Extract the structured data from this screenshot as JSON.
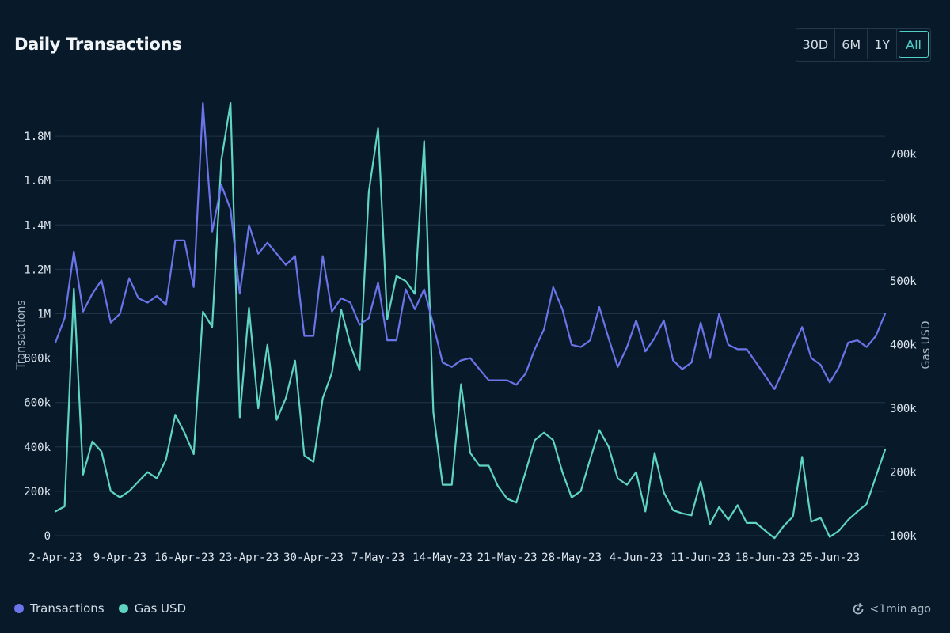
{
  "header": {
    "title": "Daily Transactions",
    "ranges": [
      "30D",
      "6M",
      "1Y",
      "All"
    ],
    "active_range": "All"
  },
  "footer": {
    "legend": [
      {
        "label": "Transactions",
        "color": "#6b74e8"
      },
      {
        "label": "Gas USD",
        "color": "#5fd4c4"
      }
    ],
    "updated": "<1min ago",
    "refresh_icon": "refresh-icon"
  },
  "chart_data": {
    "type": "line",
    "title": "Daily Transactions",
    "ylabel_left": "Transactions",
    "ylabel_right": "Gas USD",
    "y_left_ticks": [
      "0",
      "200k",
      "400k",
      "600k",
      "800k",
      "1M",
      "1.2M",
      "1.4M",
      "1.6M",
      "1.8M"
    ],
    "y_right_ticks": [
      "100k",
      "200k",
      "300k",
      "400k",
      "500k",
      "600k",
      "700k"
    ],
    "ylim_left": [
      0,
      1950000
    ],
    "ylim_right": [
      100000,
      780000
    ],
    "x_start": "2023-04-02",
    "x_tick_labels": [
      "2-Apr-23",
      "9-Apr-23",
      "16-Apr-23",
      "23-Apr-23",
      "30-Apr-23",
      "7-May-23",
      "14-May-23",
      "21-May-23",
      "28-May-23",
      "4-Jun-23",
      "11-Jun-23",
      "18-Jun-23",
      "25-Jun-23"
    ],
    "grid": true,
    "legend_position": "bottom-left",
    "series": [
      {
        "name": "Transactions",
        "axis": "left",
        "color": "#6b74e8",
        "values": [
          870000,
          980000,
          1280000,
          1010000,
          1090000,
          1150000,
          960000,
          1000000,
          1160000,
          1070000,
          1050000,
          1080000,
          1040000,
          1330000,
          1330000,
          1120000,
          1950000,
          1370000,
          1580000,
          1470000,
          1090000,
          1400000,
          1270000,
          1320000,
          1270000,
          1220000,
          1260000,
          900000,
          900000,
          1260000,
          1010000,
          1070000,
          1050000,
          950000,
          980000,
          1140000,
          880000,
          880000,
          1110000,
          1020000,
          1110000,
          950000,
          780000,
          760000,
          790000,
          800000,
          750000,
          700000,
          700000,
          700000,
          680000,
          730000,
          840000,
          930000,
          1120000,
          1020000,
          860000,
          850000,
          880000,
          1030000,
          890000,
          760000,
          850000,
          970000,
          830000,
          890000,
          970000,
          790000,
          750000,
          780000,
          960000,
          800000,
          1000000,
          860000,
          840000,
          840000,
          780000,
          720000,
          660000,
          750000,
          850000,
          940000,
          800000,
          770000,
          690000,
          760000,
          870000,
          880000,
          850000,
          900000,
          1000000
        ]
      },
      {
        "name": "Gas USD",
        "axis": "right",
        "color": "#5fd4c4",
        "values": [
          138000,
          146000,
          488000,
          196000,
          248000,
          232000,
          170000,
          160000,
          170000,
          185000,
          200000,
          190000,
          220000,
          290000,
          262000,
          228000,
          452000,
          428000,
          690000,
          780000,
          286000,
          458000,
          300000,
          400000,
          282000,
          316000,
          375000,
          226000,
          216000,
          316000,
          356000,
          455000,
          400000,
          360000,
          640000,
          740000,
          440000,
          508000,
          500000,
          480000,
          720000,
          294000,
          180000,
          180000,
          338000,
          230000,
          210000,
          210000,
          178000,
          158000,
          152000,
          200000,
          250000,
          262000,
          250000,
          200000,
          160000,
          170000,
          220000,
          266000,
          240000,
          190000,
          180000,
          200000,
          138000,
          230000,
          168000,
          140000,
          135000,
          132000,
          185000,
          118000,
          145000,
          125000,
          148000,
          120000,
          120000,
          108000,
          96000,
          115000,
          130000,
          224000,
          122000,
          128000,
          98000,
          108000,
          125000,
          138000,
          150000,
          193000,
          235000
        ]
      }
    ]
  }
}
